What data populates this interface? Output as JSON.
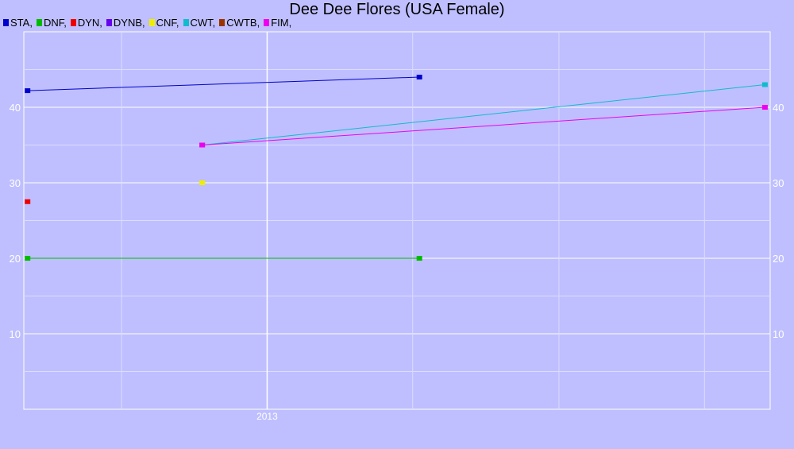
{
  "chart_data": {
    "type": "line",
    "title": "Dee Dee Flores (USA Female)",
    "xlabel": "",
    "ylabel": "",
    "x_ticks": [
      {
        "value": "2013",
        "pos": 0.326
      }
    ],
    "y_ticks": [
      "10",
      "20",
      "30",
      "40"
    ],
    "ylim": [
      0,
      50
    ],
    "grid": true,
    "legend_position": "top-left",
    "series": [
      {
        "name": "STA",
        "color": "#0000cc",
        "points": [
          {
            "x": 0.005,
            "y": 42.2
          },
          {
            "x": 0.53,
            "y": 44.0
          }
        ]
      },
      {
        "name": "DNF",
        "color": "#00bb00",
        "points": [
          {
            "x": 0.005,
            "y": 20.0
          },
          {
            "x": 0.53,
            "y": 20.0
          }
        ]
      },
      {
        "name": "DYN",
        "color": "#ee0000",
        "points": [
          {
            "x": 0.005,
            "y": 27.5
          }
        ]
      },
      {
        "name": "DYNB",
        "color": "#6600ee",
        "points": []
      },
      {
        "name": "CNF",
        "color": "#eeee00",
        "points": [
          {
            "x": 0.239,
            "y": 30.0
          }
        ]
      },
      {
        "name": "CWT",
        "color": "#11bbcc",
        "points": [
          {
            "x": 0.239,
            "y": 35.0
          },
          {
            "x": 0.993,
            "y": 43.0
          }
        ]
      },
      {
        "name": "CWTB",
        "color": "#993300",
        "points": []
      },
      {
        "name": "FIM",
        "color": "#ee00ee",
        "points": [
          {
            "x": 0.239,
            "y": 35.0
          },
          {
            "x": 0.993,
            "y": 40.0
          }
        ]
      }
    ]
  }
}
